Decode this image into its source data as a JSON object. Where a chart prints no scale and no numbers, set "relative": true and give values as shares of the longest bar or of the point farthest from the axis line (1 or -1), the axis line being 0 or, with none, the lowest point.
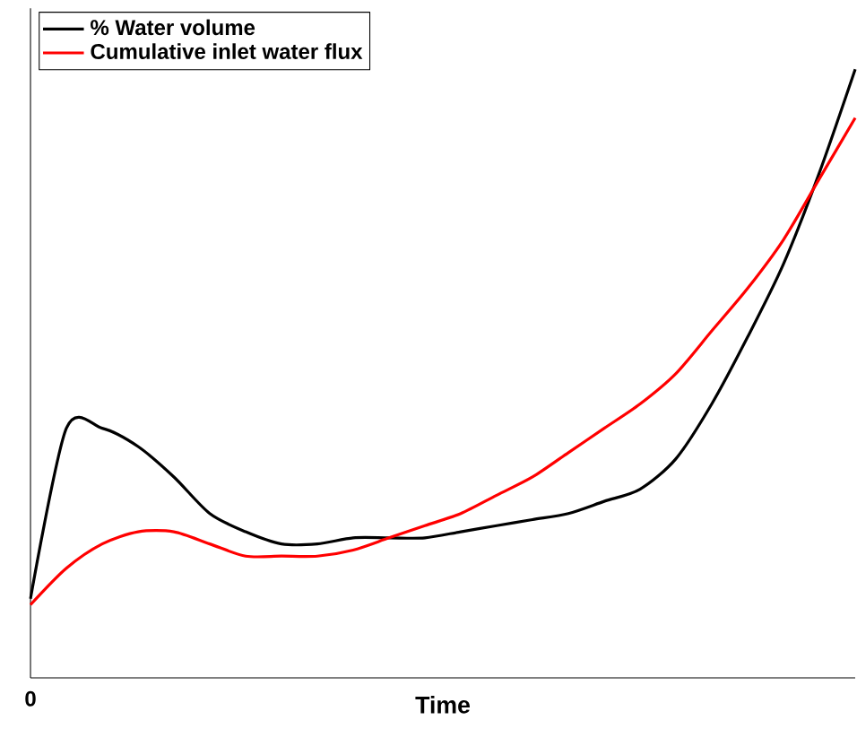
{
  "chart_data": {
    "type": "line",
    "relative": true,
    "xlabel": "Time",
    "annotations": [
      "0"
    ],
    "legend": "top left",
    "marker": "none",
    "line_style": "solid",
    "categories": [
      null,
      null,
      null,
      null,
      null,
      null,
      null,
      null,
      null,
      null,
      null,
      null,
      null,
      null,
      null,
      null,
      null,
      null,
      null,
      null,
      null,
      null,
      null,
      null
    ],
    "series": [
      {
        "name": "% Water volume",
        "color": "#000000",
        "values": [
          0.13,
          0.41,
          0.41,
          0.38,
          0.33,
          0.27,
          0.24,
          0.22,
          0.22,
          0.23,
          0.23,
          0.23,
          0.24,
          0.25,
          0.26,
          0.27,
          0.29,
          0.31,
          0.36,
          0.45,
          0.56,
          0.68,
          0.83,
          1.0
        ]
      },
      {
        "name": "Cumulative inlet water flux",
        "color": "#ff0000",
        "values": [
          0.12,
          0.18,
          0.22,
          0.24,
          0.24,
          0.22,
          0.2,
          0.2,
          0.2,
          0.21,
          0.23,
          0.25,
          0.27,
          0.3,
          0.33,
          0.37,
          0.41,
          0.45,
          0.5,
          0.57,
          0.64,
          0.72,
          0.82,
          0.92
        ]
      }
    ]
  }
}
